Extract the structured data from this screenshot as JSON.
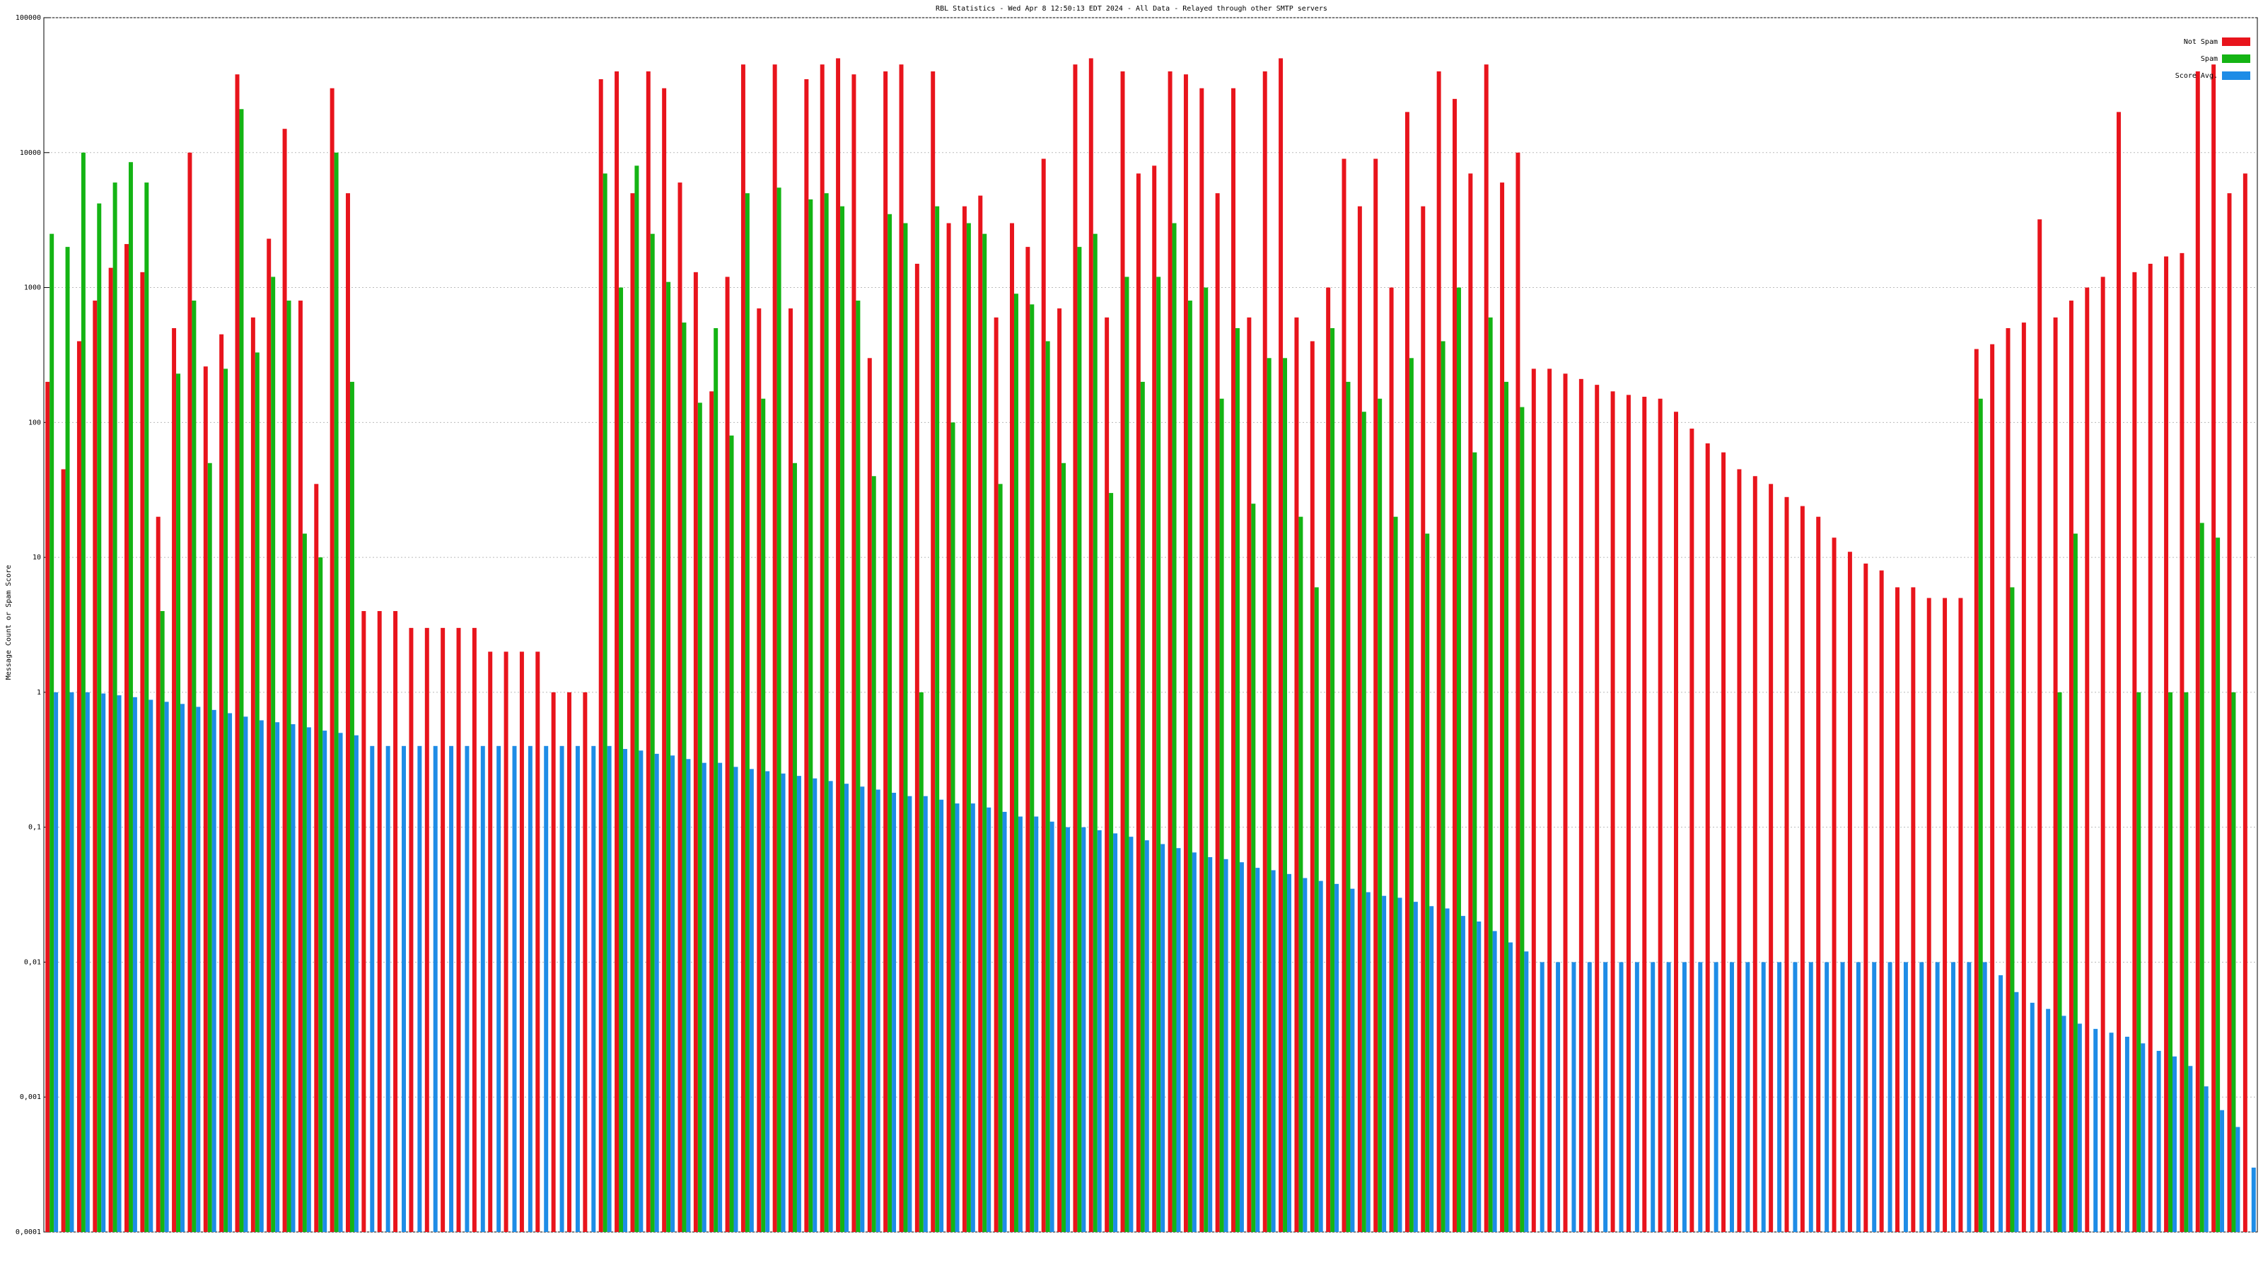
{
  "chart_data": {
    "type": "bar",
    "title": "RBL Statistics - Wed Apr  8 12:50:13 EDT 2024 - All Data - Relayed through other SMTP servers",
    "y_label": "Message Count or Spam Score",
    "log_scale": true,
    "grid": true,
    "legend": "upper right",
    "ylim": [
      0.0001,
      100000
    ],
    "yticks": [
      {
        "value": 0.0001,
        "label": "0,0001"
      },
      {
        "value": 0.001,
        "label": "0,001"
      },
      {
        "value": 0.01,
        "label": "0,01"
      },
      {
        "value": 0.1,
        "label": "0,1"
      },
      1,
      10,
      100,
      1000,
      10000,
      100000
    ],
    "categories": [
      null,
      null,
      null,
      null,
      null,
      null,
      null,
      null,
      null,
      null,
      null,
      null,
      null,
      null,
      null,
      null,
      null,
      null,
      null,
      null,
      null,
      null,
      null,
      null,
      null,
      null,
      null,
      null,
      null,
      null,
      null,
      null,
      null,
      null,
      null,
      null,
      null,
      null,
      null,
      null,
      null,
      null,
      null,
      null,
      null,
      null,
      null,
      null,
      null,
      null,
      null,
      null,
      null,
      null,
      null,
      null,
      null,
      null,
      null,
      null,
      null,
      null,
      null,
      null,
      null,
      null,
      null,
      null,
      null,
      null,
      null,
      null,
      null,
      null,
      null,
      null,
      null,
      null,
      null,
      null,
      null,
      null,
      null,
      null,
      null,
      null,
      null,
      null,
      null,
      null,
      null,
      null,
      null,
      null,
      null,
      null,
      null,
      null,
      null,
      null,
      null,
      null,
      null,
      null,
      null,
      null,
      null,
      null,
      null,
      null,
      null,
      null,
      null,
      null,
      null,
      null,
      null,
      null,
      null,
      null,
      null,
      null,
      null,
      null,
      null,
      null,
      null,
      null,
      null,
      null,
      null,
      null,
      null,
      null,
      null,
      null,
      null,
      null,
      null,
      null
    ],
    "series": [
      {
        "name": "Not Spam",
        "color": "#e8141c",
        "values": [
          200,
          45,
          400,
          800,
          1400,
          2100,
          1300,
          20,
          500,
          10000,
          260,
          450,
          38000,
          600,
          2300,
          15000,
          800,
          35,
          30000,
          5000,
          4,
          4,
          4,
          3,
          3,
          3,
          3,
          3,
          2,
          2,
          2,
          2,
          1,
          1,
          1,
          35000,
          40000,
          5000,
          40000,
          30000,
          6000,
          1300,
          170,
          1200,
          45000,
          700,
          45000,
          700,
          35000,
          45000,
          50000,
          38000,
          300,
          40000,
          45000,
          1500,
          40000,
          3000,
          4000,
          4800,
          600,
          3000,
          2000,
          9000,
          700,
          45000,
          50000,
          600,
          40000,
          7000,
          8000,
          40000,
          38000,
          30000,
          5000,
          30000,
          600,
          40000,
          50000,
          600,
          400,
          1000,
          9000,
          4000,
          9000,
          1000,
          20000,
          4000,
          40000,
          25000,
          7000,
          45000,
          6000,
          10000,
          250,
          250,
          230,
          210,
          190,
          170,
          160,
          155,
          150,
          120,
          90,
          70,
          60,
          45,
          40,
          35,
          28,
          24,
          20,
          14,
          11,
          9,
          8,
          6,
          6,
          5,
          5,
          5,
          350,
          380,
          500,
          550,
          3200,
          600,
          800,
          1000,
          1200,
          20000,
          1300,
          1500,
          1700,
          1800,
          40000,
          45000,
          5000,
          7000
        ]
      },
      {
        "name": "Spam",
        "color": "#14b414",
        "values": [
          2500,
          2000,
          10000,
          4200,
          6000,
          8500,
          6000,
          4,
          230,
          800,
          50,
          250,
          21000,
          330,
          1200,
          800,
          15,
          10,
          10000,
          200,
          null,
          null,
          null,
          null,
          null,
          null,
          null,
          null,
          null,
          null,
          null,
          null,
          null,
          null,
          null,
          7000,
          1000,
          8000,
          2500,
          1100,
          550,
          140,
          500,
          80,
          5000,
          150,
          5500,
          50,
          4500,
          5000,
          4000,
          800,
          40,
          3500,
          3000,
          1,
          4000,
          100,
          3000,
          2500,
          35,
          900,
          750,
          400,
          50,
          2000,
          2500,
          30,
          1200,
          200,
          1200,
          3000,
          800,
          1000,
          150,
          500,
          25,
          300,
          300,
          20,
          6,
          500,
          200,
          120,
          150,
          20,
          300,
          15,
          400,
          1000,
          60,
          600,
          200,
          130,
          null,
          null,
          null,
          null,
          null,
          null,
          null,
          null,
          null,
          null,
          null,
          null,
          null,
          null,
          null,
          null,
          null,
          null,
          null,
          null,
          null,
          null,
          null,
          null,
          null,
          null,
          null,
          null,
          150,
          null,
          6,
          null,
          null,
          1,
          15,
          null,
          null,
          null,
          1,
          null,
          1,
          1,
          18,
          14,
          1,
          null
        ]
      },
      {
        "name": "Score Avg.",
        "color": "#1e8ce6",
        "values": [
          1,
          1,
          1,
          0.98,
          0.95,
          0.92,
          0.88,
          0.85,
          0.82,
          0.78,
          0.74,
          0.7,
          0.66,
          0.62,
          0.6,
          0.58,
          0.55,
          0.52,
          0.5,
          0.48,
          0.4,
          0.4,
          0.4,
          0.4,
          0.4,
          0.4,
          0.4,
          0.4,
          0.4,
          0.4,
          0.4,
          0.4,
          0.4,
          0.4,
          0.4,
          0.4,
          0.38,
          0.37,
          0.35,
          0.34,
          0.32,
          0.3,
          0.3,
          0.28,
          0.27,
          0.26,
          0.25,
          0.24,
          0.23,
          0.22,
          0.21,
          0.2,
          0.19,
          0.18,
          0.17,
          0.17,
          0.16,
          0.15,
          0.15,
          0.14,
          0.13,
          0.12,
          0.12,
          0.11,
          0.1,
          0.1,
          0.095,
          0.09,
          0.085,
          0.08,
          0.075,
          0.07,
          0.065,
          0.06,
          0.058,
          0.055,
          0.05,
          0.048,
          0.045,
          0.042,
          0.04,
          0.038,
          0.035,
          0.033,
          0.031,
          0.03,
          0.028,
          0.026,
          0.025,
          0.022,
          0.02,
          0.017,
          0.014,
          0.012,
          0.01,
          0.01,
          0.01,
          0.01,
          0.01,
          0.01,
          0.01,
          0.01,
          0.01,
          0.01,
          0.01,
          0.01,
          0.01,
          0.01,
          0.01,
          0.01,
          0.01,
          0.01,
          0.01,
          0.01,
          0.01,
          0.01,
          0.01,
          0.01,
          0.01,
          0.01,
          0.01,
          0.01,
          0.01,
          0.008,
          0.006,
          0.005,
          0.0045,
          0.004,
          0.0035,
          0.0032,
          0.003,
          0.0028,
          0.0025,
          0.0022,
          0.002,
          0.0017,
          0.0012,
          0.0008,
          0.0006,
          0.0003
        ]
      }
    ]
  }
}
